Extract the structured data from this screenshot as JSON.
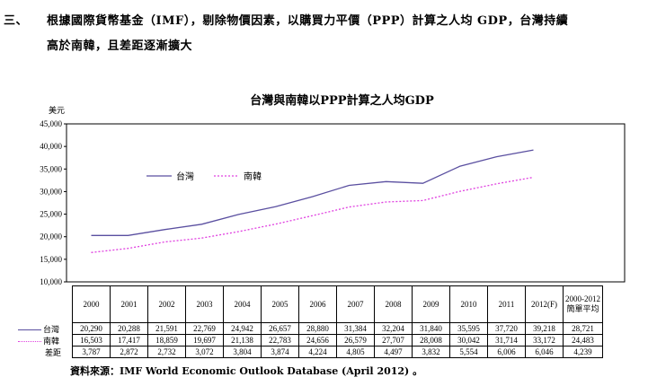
{
  "heading": {
    "number": "三、",
    "line1": "根據國際貨幣基金（IMF），剔除物價因素，以購買力平價（PPP）計算之人均 GDP，台灣持續",
    "line2": "高於南韓，且差距逐漸擴大"
  },
  "chart_data": {
    "type": "line",
    "title": "台灣與南韓以PPP計算之人均GDP",
    "ylabel": "美元",
    "ylim": [
      10000,
      45000
    ],
    "yticks": [
      "10,000",
      "15,000",
      "20,000",
      "25,000",
      "30,000",
      "35,000",
      "40,000",
      "45,000"
    ],
    "ytick_values": [
      10000,
      15000,
      20000,
      25000,
      30000,
      35000,
      40000,
      45000
    ],
    "categories": [
      "2000",
      "2001",
      "2002",
      "2003",
      "2004",
      "2005",
      "2006",
      "2007",
      "2008",
      "2009",
      "2010",
      "2011",
      "2012(F)"
    ],
    "series": [
      {
        "name": "台灣",
        "color": "#5a4fa0",
        "style": "solid",
        "values": [
          20290,
          20288,
          21591,
          22769,
          24942,
          26657,
          28880,
          31384,
          32204,
          31840,
          35595,
          37720,
          39218
        ]
      },
      {
        "name": "南韓",
        "color": "#e040e0",
        "style": "dotted",
        "values": [
          16503,
          17417,
          18859,
          19697,
          21138,
          22783,
          24656,
          26579,
          27707,
          28008,
          30042,
          31714,
          33172
        ]
      }
    ],
    "legend": "top-left",
    "grid": false
  },
  "table": {
    "last_header": [
      "2000-2012",
      "簡單平均"
    ],
    "rows": [
      {
        "label": "台灣",
        "cells": [
          "20,290",
          "20,288",
          "21,591",
          "22,769",
          "24,942",
          "26,657",
          "28,880",
          "31,384",
          "32,204",
          "31,840",
          "35,595",
          "37,720",
          "39,218",
          "28,721"
        ]
      },
      {
        "label": "南韓",
        "cells": [
          "16,503",
          "17,417",
          "18,859",
          "19,697",
          "21,138",
          "22,783",
          "24,656",
          "26,579",
          "27,707",
          "28,008",
          "30,042",
          "31,714",
          "33,172",
          "24,483"
        ]
      },
      {
        "label": "差距",
        "cells": [
          "3,787",
          "2,872",
          "2,732",
          "3,072",
          "3,804",
          "3,874",
          "4,224",
          "4,805",
          "4,497",
          "3,832",
          "5,554",
          "6,006",
          "6,046",
          "4,239"
        ]
      }
    ]
  },
  "source": "資料來源：IMF World Economic Outlook  Database (April 2012) 。"
}
